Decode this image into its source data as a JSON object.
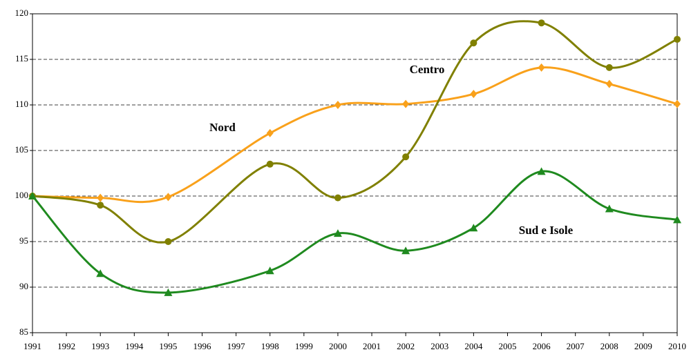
{
  "chart_data": {
    "type": "line",
    "x": [
      1991,
      1993,
      1995,
      1998,
      2000,
      2002,
      2004,
      2006,
      2008,
      2010
    ],
    "series": [
      {
        "name": "Nord",
        "color": "#f9a11b",
        "marker": "diamond",
        "values": [
          100,
          99.8,
          99.9,
          106.9,
          110,
          110.1,
          111.2,
          114.1,
          112.3,
          110.1
        ]
      },
      {
        "name": "Centro",
        "color": "#808000",
        "marker": "circle",
        "values": [
          100,
          99.0,
          95.0,
          103.5,
          99.8,
          104.3,
          116.8,
          119.0,
          114.1,
          117.2
        ]
      },
      {
        "name": "Sud e Isole",
        "color": "#1f8a1f",
        "marker": "triangle",
        "values": [
          100,
          91.5,
          89.4,
          91.8,
          95.9,
          94.0,
          96.5,
          102.7,
          98.6,
          97.4
        ]
      }
    ],
    "xlim": [
      1991,
      2010
    ],
    "xticks": [
      1991,
      1992,
      1993,
      1994,
      1995,
      1996,
      1997,
      1998,
      1999,
      2000,
      2001,
      2002,
      2003,
      2004,
      2005,
      2006,
      2007,
      2008,
      2009,
      2010
    ],
    "ylim": [
      85,
      120
    ],
    "yticks": [
      85,
      90,
      95,
      100,
      105,
      110,
      115,
      120
    ],
    "grid": true
  }
}
